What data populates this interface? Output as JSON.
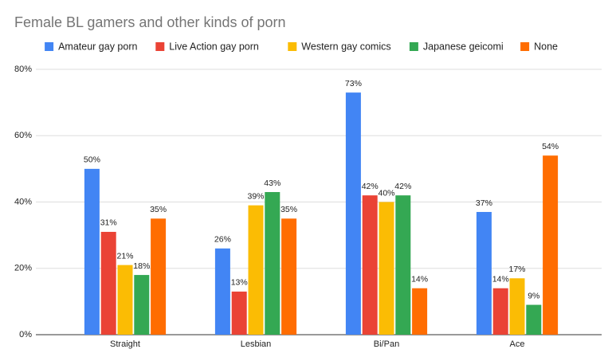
{
  "chart_data": {
    "type": "bar",
    "title": "Female BL gamers and other kinds of porn",
    "categories": [
      "Straight",
      "Lesbian",
      "Bi/Pan",
      "Ace"
    ],
    "series": [
      {
        "name": "Amateur gay porn",
        "color": "#4285f4",
        "values": [
          50,
          26,
          73,
          37
        ],
        "value_labels": [
          "50%",
          "26%",
          "73%",
          "37%"
        ]
      },
      {
        "name": "Live Action gay porn",
        "color": "#ea4335",
        "values": [
          31,
          13,
          42,
          14
        ],
        "value_labels": [
          "31%",
          "13%",
          "42%",
          "14%"
        ]
      },
      {
        "name": "Western gay comics",
        "color": "#fbbc04",
        "values": [
          21,
          39,
          40,
          17
        ],
        "value_labels": [
          "21%",
          "39%",
          "40%",
          "17%"
        ]
      },
      {
        "name": "Japanese geicomi",
        "color": "#34a853",
        "values": [
          18,
          43,
          42,
          9
        ],
        "value_labels": [
          "18%",
          "43%",
          "42%",
          "9%"
        ]
      },
      {
        "name": "None",
        "color": "#ff6d01",
        "values": [
          35,
          35,
          14,
          54
        ],
        "value_labels": [
          "35%",
          "35%",
          "14%",
          "54%"
        ]
      }
    ],
    "ylim": [
      0,
      80
    ],
    "yticks": [
      {
        "value": 0,
        "label": "0%"
      },
      {
        "value": 20,
        "label": "20%"
      },
      {
        "value": 40,
        "label": "40%"
      },
      {
        "value": 60,
        "label": "60%"
      },
      {
        "value": 80,
        "label": "80%"
      }
    ],
    "grid": true
  }
}
